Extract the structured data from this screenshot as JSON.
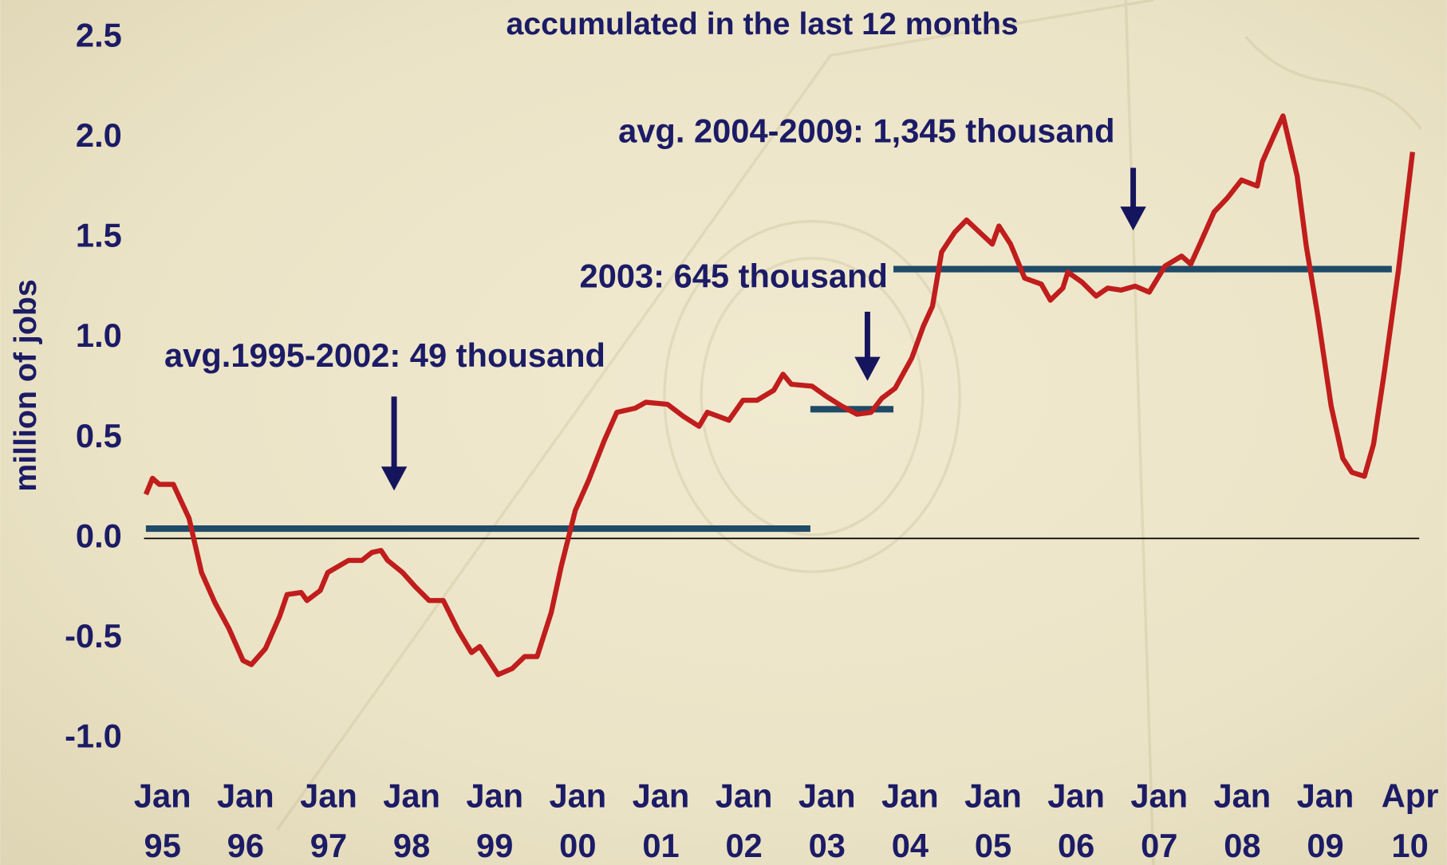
{
  "chart_data": {
    "type": "line",
    "title": "accumulated in the last 12 months",
    "y_label": "million of jobs",
    "xlim": [
      1995,
      2010.33
    ],
    "ylim": [
      -1,
      2.5
    ],
    "xticks": [
      {
        "value": 1995,
        "label": "Jan 95"
      },
      {
        "value": 1996,
        "label": "Jan 96"
      },
      {
        "value": 1997,
        "label": "Jan 97"
      },
      {
        "value": 1998,
        "label": "Jan 98"
      },
      {
        "value": 1999,
        "label": "Jan 99"
      },
      {
        "value": 2000,
        "label": "Jan 00"
      },
      {
        "value": 2001,
        "label": "Jan 01"
      },
      {
        "value": 2002,
        "label": "Jan 02"
      },
      {
        "value": 2003,
        "label": "Jan 03"
      },
      {
        "value": 2004,
        "label": "Jan 04"
      },
      {
        "value": 2005,
        "label": "Jan 05"
      },
      {
        "value": 2006,
        "label": "Jan 06"
      },
      {
        "value": 2007,
        "label": "Jan 07"
      },
      {
        "value": 2008,
        "label": "Jan 08"
      },
      {
        "value": 2009,
        "label": "Jan 09"
      },
      {
        "value": 2010.25,
        "label": "Apr 10"
      }
    ],
    "yticks": [
      {
        "value": -1,
        "label": "-1.0"
      },
      -0.5,
      {
        "value": 0,
        "label": "0.0"
      },
      0.5,
      {
        "value": 1,
        "label": "1.0"
      },
      1.5,
      {
        "value": 2,
        "label": "2.0"
      },
      2.5
    ],
    "zero_line": true,
    "series": [
      {
        "color": "#c01d1d",
        "x": [
          1995.0,
          1995.08,
          1995.16,
          1995.33,
          1995.52,
          1995.67,
          1995.83,
          1996.0,
          1996.17,
          1996.27,
          1996.44,
          1996.61,
          1996.7,
          1996.87,
          1996.94,
          1997.1,
          1997.19,
          1997.44,
          1997.6,
          1997.72,
          1997.83,
          1997.91,
          1998.09,
          1998.24,
          1998.41,
          1998.58,
          1998.76,
          1998.92,
          1999.02,
          1999.24,
          1999.41,
          1999.56,
          1999.71,
          1999.88,
          2000.0,
          2000.17,
          2000.33,
          2000.52,
          2000.67,
          2000.89,
          2001.02,
          2001.28,
          2001.47,
          2001.66,
          2001.76,
          2002.02,
          2002.19,
          2002.36,
          2002.56,
          2002.67,
          2002.77,
          2003.02,
          2003.19,
          2003.38,
          2003.56,
          2003.73,
          2003.86,
          2004.02,
          2004.22,
          2004.36,
          2004.47,
          2004.58,
          2004.74,
          2004.88,
          2005.06,
          2005.19,
          2005.27,
          2005.41,
          2005.58,
          2005.78,
          2005.89,
          2006.04,
          2006.1,
          2006.27,
          2006.44,
          2006.58,
          2006.74,
          2006.91,
          2007.08,
          2007.27,
          2007.47,
          2007.58,
          2007.69,
          2007.86,
          2008.02,
          2008.19,
          2008.38,
          2008.44,
          2008.6,
          2008.69,
          2008.86,
          2008.97,
          2009.11,
          2009.27,
          2009.41,
          2009.52,
          2009.67,
          2009.78,
          2009.91,
          2010.08,
          2010.25
        ],
        "values": [
          0.22,
          0.3,
          0.27,
          0.27,
          0.1,
          -0.17,
          -0.32,
          -0.45,
          -0.61,
          -0.63,
          -0.55,
          -0.39,
          -0.28,
          -0.27,
          -0.31,
          -0.26,
          -0.17,
          -0.11,
          -0.11,
          -0.07,
          -0.06,
          -0.11,
          -0.17,
          -0.24,
          -0.31,
          -0.31,
          -0.46,
          -0.57,
          -0.54,
          -0.68,
          -0.65,
          -0.59,
          -0.59,
          -0.37,
          -0.14,
          0.14,
          0.29,
          0.49,
          0.63,
          0.65,
          0.68,
          0.67,
          0.61,
          0.56,
          0.63,
          0.59,
          0.69,
          0.69,
          0.74,
          0.82,
          0.77,
          0.76,
          0.71,
          0.66,
          0.62,
          0.63,
          0.7,
          0.75,
          0.9,
          1.06,
          1.16,
          1.43,
          1.53,
          1.59,
          1.52,
          1.47,
          1.56,
          1.47,
          1.3,
          1.27,
          1.19,
          1.25,
          1.33,
          1.28,
          1.21,
          1.25,
          1.24,
          1.26,
          1.23,
          1.36,
          1.41,
          1.37,
          1.47,
          1.63,
          1.7,
          1.79,
          1.76,
          1.88,
          2.03,
          2.11,
          1.81,
          1.46,
          1.11,
          0.66,
          0.4,
          0.33,
          0.31,
          0.47,
          0.83,
          1.34,
          1.93
        ]
      }
    ],
    "reference_lines": [
      {
        "label": "avg.1995-2002: 49 thousand",
        "value": 0.049,
        "xrange": [
          1995,
          2003
        ],
        "color": "#1f4a68"
      },
      {
        "label": "2003: 645 thousand",
        "value": 0.645,
        "xrange": [
          2003,
          2004
        ],
        "color": "#1f4a68"
      },
      {
        "label": "avg. 2004-2009: 1,345 thousand",
        "value": 1.345,
        "xrange": [
          2004,
          2010
        ],
        "color": "#1f4a68"
      }
    ]
  }
}
